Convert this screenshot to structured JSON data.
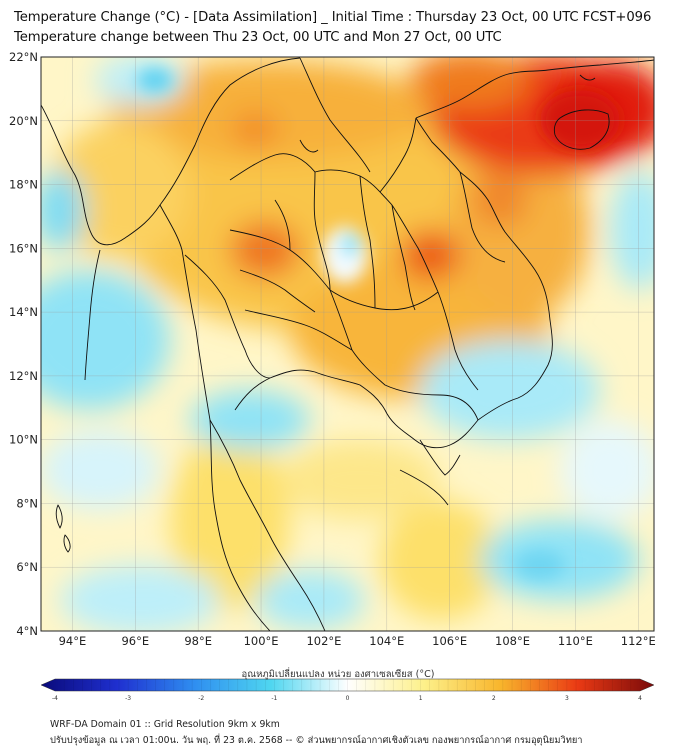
{
  "title_line1": "Temperature Change (°C) - [Data Assimilation] _ Initial Time : Thursday 23 Oct, 00 UTC FCST+096",
  "title_line2": "Temperature change between Thu 23 Oct, 00 UTC and Mon 27 Oct, 00 UTC",
  "map": {
    "lat_range": [
      4,
      22
    ],
    "lon_range": [
      93,
      112.5
    ],
    "lat_ticks": [
      "4°N",
      "6°N",
      "8°N",
      "10°N",
      "12°N",
      "14°N",
      "16°N",
      "18°N",
      "20°N",
      "22°N"
    ],
    "lon_ticks": [
      "94°E",
      "96°E",
      "98°E",
      "100°E",
      "102°E",
      "104°E",
      "106°E",
      "108°E",
      "110°E",
      "112°E"
    ],
    "grid": true,
    "colors": {
      "warm_strong": "#e81e10",
      "warm_mid": "#f5a623",
      "warm_light": "#fde36b",
      "neutral": "#ffffff",
      "cool_light": "#c6f0fa",
      "cool_mid": "#5fd2f2"
    }
  },
  "colorbar": {
    "title": "อุณหภูมิเปลี่ยนแปลง หน่วย องศาเซลเซียส (°C)",
    "ticks": [
      "-4",
      "-3",
      "-2",
      "-1",
      "0",
      "1",
      "2",
      "3",
      "4"
    ],
    "range": [
      -4,
      4
    ],
    "colors": [
      "#0a0a7a",
      "#1f30d0",
      "#2f8ef0",
      "#4fd6f0",
      "#ffffff",
      "#fdf08a",
      "#f8b52c",
      "#ea3a14",
      "#7a0a0a"
    ]
  },
  "footer_line1": "WRF-DA Domain 01 :: Grid Resolution 9km x 9km",
  "footer_line2": "ปรับปรุงข้อมูล ณ เวลา 01:00น. วัน พฤ. ที่ 23 ต.ค. 2568 -- © ส่วนพยากรณ์อากาศเชิงตัวเลข กองพยากรณ์อากาศ กรมอุตุนิยมวิทยา"
}
